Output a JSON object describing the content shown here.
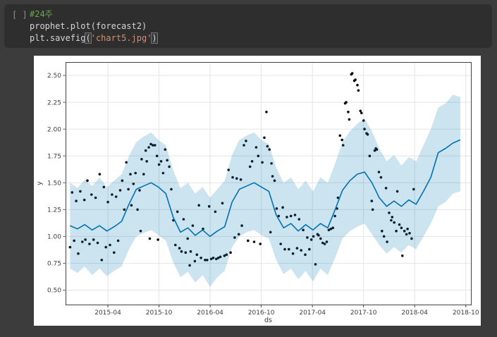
{
  "notebook": {
    "cell": {
      "run_indicator": "[ ]",
      "lines": [
        {
          "parts": [
            {
              "t": "#24주",
              "c": "comment"
            }
          ]
        },
        {
          "parts": [
            {
              "t": "prophet.plot(forecast2)",
              "c": "plain"
            }
          ]
        },
        {
          "parts": [
            {
              "t": "plt.savefig",
              "c": "plain"
            },
            {
              "t": "(",
              "c": "bracket"
            },
            {
              "t": "'chart5.jpg'",
              "c": "string"
            },
            {
              "t": ")",
              "c": "bracket"
            }
          ]
        }
      ]
    },
    "colors": {
      "page_bg": "#3c3c3c",
      "cell_bg": "#2e2e2e",
      "comment": "#69a84f",
      "string": "#ce9178",
      "plain": "#d6d6d6"
    }
  },
  "chart_data": {
    "type": "line",
    "description": "Prophet forecast plot: black observed points, blue yhat line, light-blue uncertainty band",
    "xlabel": "ds",
    "ylabel": "y",
    "xlim": [
      2014.836,
      2018.8
    ],
    "ylim": [
      0.365,
      2.625
    ],
    "grid": true,
    "colors": {
      "line": "#0072B2",
      "band": "#0072B2",
      "band_alpha": 0.2,
      "dots": "#0a0a0a",
      "gridline": "#e4e4e4",
      "spine": "#424242",
      "text": "#3d3d3d"
    },
    "xticks": [
      {
        "label": "2015-04",
        "value": 2015.25
      },
      {
        "label": "2015-10",
        "value": 2015.75
      },
      {
        "label": "2016-04",
        "value": 2016.25
      },
      {
        "label": "2016-10",
        "value": 2016.75
      },
      {
        "label": "2017-04",
        "value": 2017.25
      },
      {
        "label": "2017-10",
        "value": 2017.75
      },
      {
        "label": "2018-04",
        "value": 2018.25
      },
      {
        "label": "2018-10",
        "value": 2018.75
      }
    ],
    "yticks": [
      {
        "label": "0.50",
        "value": 0.5
      },
      {
        "label": "0.75",
        "value": 0.75
      },
      {
        "label": "1.00",
        "value": 1.0
      },
      {
        "label": "1.25",
        "value": 1.25
      },
      {
        "label": "1.50",
        "value": 1.5
      },
      {
        "label": "1.75",
        "value": 1.75
      },
      {
        "label": "2.00",
        "value": 2.0
      },
      {
        "label": "2.25",
        "value": 2.25
      },
      {
        "label": "2.50",
        "value": 2.5
      }
    ],
    "forecast": [
      [
        2014.88,
        1.1,
        0.7,
        1.5
      ],
      [
        2014.952,
        1.07,
        0.66,
        1.45
      ],
      [
        2015.024,
        1.11,
        0.72,
        1.53
      ],
      [
        2015.096,
        1.06,
        0.64,
        1.47
      ],
      [
        2015.168,
        1.1,
        0.7,
        1.55
      ],
      [
        2015.24,
        1.05,
        0.63,
        1.46
      ],
      [
        2015.312,
        1.09,
        0.68,
        1.52
      ],
      [
        2015.384,
        1.14,
        0.72,
        1.58
      ],
      [
        2015.456,
        1.3,
        0.88,
        1.75
      ],
      [
        2015.528,
        1.44,
        1.0,
        1.88
      ],
      [
        2015.6,
        1.47,
        1.03,
        1.93
      ],
      [
        2015.672,
        1.5,
        1.06,
        1.97
      ],
      [
        2015.744,
        1.46,
        1.01,
        1.9
      ],
      [
        2015.816,
        1.4,
        0.96,
        1.85
      ],
      [
        2015.888,
        1.18,
        0.76,
        1.62
      ],
      [
        2015.96,
        1.04,
        0.62,
        1.45
      ],
      [
        2016.032,
        1.08,
        0.67,
        1.5
      ],
      [
        2016.104,
        1.01,
        0.57,
        1.4
      ],
      [
        2016.176,
        1.06,
        0.64,
        1.46
      ],
      [
        2016.248,
        1.0,
        0.53,
        1.36
      ],
      [
        2016.32,
        1.05,
        0.62,
        1.44
      ],
      [
        2016.392,
        1.09,
        0.68,
        1.52
      ],
      [
        2016.464,
        1.32,
        0.9,
        1.76
      ],
      [
        2016.536,
        1.44,
        1.0,
        1.9
      ],
      [
        2016.608,
        1.47,
        1.04,
        1.94
      ],
      [
        2016.68,
        1.5,
        1.06,
        1.97
      ],
      [
        2016.752,
        1.46,
        1.01,
        1.9
      ],
      [
        2016.824,
        1.42,
        0.98,
        1.86
      ],
      [
        2016.896,
        1.2,
        0.78,
        1.64
      ],
      [
        2016.968,
        1.08,
        0.65,
        1.5
      ],
      [
        2017.04,
        1.12,
        0.7,
        1.55
      ],
      [
        2017.112,
        1.05,
        0.6,
        1.44
      ],
      [
        2017.184,
        1.11,
        0.68,
        1.52
      ],
      [
        2017.256,
        1.06,
        0.58,
        1.42
      ],
      [
        2017.328,
        1.12,
        0.7,
        1.55
      ],
      [
        2017.4,
        1.08,
        0.64,
        1.5
      ],
      [
        2017.472,
        1.25,
        0.8,
        1.68
      ],
      [
        2017.544,
        1.43,
        0.98,
        1.88
      ],
      [
        2017.616,
        1.52,
        1.05,
        1.98
      ],
      [
        2017.688,
        1.58,
        1.09,
        2.05
      ],
      [
        2017.76,
        1.6,
        1.12,
        2.1
      ],
      [
        2017.832,
        1.5,
        1.02,
        1.98
      ],
      [
        2017.904,
        1.36,
        0.92,
        1.82
      ],
      [
        2017.976,
        1.28,
        0.84,
        1.7
      ],
      [
        2018.048,
        1.33,
        0.9,
        1.76
      ],
      [
        2018.12,
        1.28,
        0.85,
        1.66
      ],
      [
        2018.192,
        1.34,
        0.92,
        1.74
      ],
      [
        2018.264,
        1.3,
        0.88,
        1.7
      ],
      [
        2018.336,
        1.42,
        1.0,
        1.85
      ],
      [
        2018.408,
        1.55,
        1.12,
        2.0
      ],
      [
        2018.48,
        1.78,
        1.28,
        2.2
      ],
      [
        2018.552,
        1.82,
        1.32,
        2.24
      ],
      [
        2018.624,
        1.87,
        1.4,
        2.32
      ],
      [
        2018.696,
        1.9,
        1.42,
        2.3
      ]
    ],
    "scatter": [
      [
        2014.88,
        0.9
      ],
      [
        2014.9,
        1.41
      ],
      [
        2014.92,
        0.96
      ],
      [
        2014.94,
        1.33
      ],
      [
        2014.96,
        0.84
      ],
      [
        2014.98,
        1.42
      ],
      [
        2015.0,
        0.95
      ],
      [
        2015.02,
        1.34
      ],
      [
        2015.03,
        0.97
      ],
      [
        2015.05,
        1.52
      ],
      [
        2015.07,
        0.93
      ],
      [
        2015.09,
        1.39
      ],
      [
        2015.11,
        0.97
      ],
      [
        2015.13,
        1.36
      ],
      [
        2015.15,
        0.94
      ],
      [
        2015.17,
        1.58
      ],
      [
        2015.19,
        0.78
      ],
      [
        2015.21,
        1.46
      ],
      [
        2015.23,
        0.9
      ],
      [
        2015.25,
        1.32
      ],
      [
        2015.27,
        0.92
      ],
      [
        2015.29,
        1.39
      ],
      [
        2015.31,
        0.85
      ],
      [
        2015.33,
        1.37
      ],
      [
        2015.35,
        0.96
      ],
      [
        2015.37,
        1.43
      ],
      [
        2015.39,
        1.52
      ],
      [
        2015.41,
        1.25
      ],
      [
        2015.43,
        1.69
      ],
      [
        2015.45,
        1.44
      ],
      [
        2015.47,
        1.58
      ],
      [
        2015.48,
        1.29
      ],
      [
        2015.5,
        1.49
      ],
      [
        2015.52,
        1.59
      ],
      [
        2015.54,
        1.25
      ],
      [
        2015.56,
        1.43
      ],
      [
        2015.57,
        1.05
      ],
      [
        2015.58,
        1.72
      ],
      [
        2015.6,
        1.58
      ],
      [
        2015.62,
        1.8
      ],
      [
        2015.63,
        1.7
      ],
      [
        2015.65,
        1.83
      ],
      [
        2015.66,
        0.98
      ],
      [
        2015.67,
        1.86
      ],
      [
        2015.69,
        1.85
      ],
      [
        2015.71,
        1.85
      ],
      [
        2015.73,
        1.75
      ],
      [
        2015.74,
        0.97
      ],
      [
        2015.75,
        1.67
      ],
      [
        2015.77,
        1.7
      ],
      [
        2015.79,
        1.59
      ],
      [
        2015.81,
        1.81
      ],
      [
        2015.83,
        1.71
      ],
      [
        2015.85,
        1.65
      ],
      [
        2015.87,
        1.44
      ],
      [
        2015.89,
        1.15
      ],
      [
        2015.91,
        0.92
      ],
      [
        2015.93,
        1.23
      ],
      [
        2015.95,
        0.89
      ],
      [
        2015.97,
        0.86
      ],
      [
        2015.99,
        1.16
      ],
      [
        2016.01,
        0.85
      ],
      [
        2016.03,
        0.98
      ],
      [
        2016.05,
        0.73
      ],
      [
        2016.06,
        0.86
      ],
      [
        2016.08,
        1.1
      ],
      [
        2016.1,
        0.77
      ],
      [
        2016.12,
        0.83
      ],
      [
        2016.14,
        1.29
      ],
      [
        2016.16,
        0.8
      ],
      [
        2016.18,
        1.07
      ],
      [
        2016.2,
        0.78
      ],
      [
        2016.22,
        0.78
      ],
      [
        2016.24,
        1.28
      ],
      [
        2016.26,
        0.79
      ],
      [
        2016.28,
        0.8
      ],
      [
        2016.3,
        1.23
      ],
      [
        2016.31,
        0.79
      ],
      [
        2016.33,
        0.8
      ],
      [
        2016.35,
        0.81
      ],
      [
        2016.37,
        1.31
      ],
      [
        2016.39,
        0.82
      ],
      [
        2016.41,
        0.83
      ],
      [
        2016.43,
        1.62
      ],
      [
        2016.45,
        0.85
      ],
      [
        2016.47,
        1.55
      ],
      [
        2016.49,
        0.99
      ],
      [
        2016.51,
        1.54
      ],
      [
        2016.53,
        1.02
      ],
      [
        2016.55,
        1.53
      ],
      [
        2016.56,
        1.1
      ],
      [
        2016.58,
        1.85
      ],
      [
        2016.6,
        1.89
      ],
      [
        2016.62,
        0.96
      ],
      [
        2016.64,
        1.65
      ],
      [
        2016.66,
        1.7
      ],
      [
        2016.68,
        0.95
      ],
      [
        2016.7,
        1.83
      ],
      [
        2016.72,
        1.75
      ],
      [
        2016.74,
        0.93
      ],
      [
        2016.76,
        1.69
      ],
      [
        2016.78,
        1.92
      ],
      [
        2016.8,
        2.16
      ],
      [
        2016.81,
        1.84
      ],
      [
        2016.83,
        1.81
      ],
      [
        2016.84,
        1.04
      ],
      [
        2016.85,
        1.68
      ],
      [
        2016.86,
        1.56
      ],
      [
        2016.88,
        1.52
      ],
      [
        2016.9,
        1.26
      ],
      [
        2016.92,
        1.19
      ],
      [
        2016.94,
        0.93
      ],
      [
        2016.96,
        1.27
      ],
      [
        2016.98,
        0.88
      ],
      [
        2017.0,
        1.18
      ],
      [
        2017.02,
        0.88
      ],
      [
        2017.04,
        1.19
      ],
      [
        2017.06,
        0.84
      ],
      [
        2017.08,
        1.2
      ],
      [
        2017.1,
        0.89
      ],
      [
        2017.12,
        1.16
      ],
      [
        2017.14,
        0.87
      ],
      [
        2017.16,
        1.06
      ],
      [
        2017.18,
        0.83
      ],
      [
        2017.2,
        0.99
      ],
      [
        2017.22,
        0.88
      ],
      [
        2017.24,
        0.97
      ],
      [
        2017.26,
        1.0
      ],
      [
        2017.28,
        0.74
      ],
      [
        2017.3,
        1.02
      ],
      [
        2017.31,
        1.01
      ],
      [
        2017.33,
        0.98
      ],
      [
        2017.35,
        0.94
      ],
      [
        2017.37,
        0.93
      ],
      [
        2017.39,
        0.95
      ],
      [
        2017.41,
        1.06
      ],
      [
        2017.43,
        1.07
      ],
      [
        2017.45,
        1.08
      ],
      [
        2017.47,
        1.19
      ],
      [
        2017.49,
        1.26
      ],
      [
        2017.5,
        1.36
      ],
      [
        2017.52,
        1.94
      ],
      [
        2017.54,
        1.9
      ],
      [
        2017.55,
        1.85
      ],
      [
        2017.57,
        2.24
      ],
      [
        2017.58,
        2.25
      ],
      [
        2017.6,
        2.16
      ],
      [
        2017.61,
        2.09
      ],
      [
        2017.63,
        2.51
      ],
      [
        2017.64,
        2.52
      ],
      [
        2017.66,
        2.45
      ],
      [
        2017.67,
        2.46
      ],
      [
        2017.69,
        2.41
      ],
      [
        2017.7,
        2.36
      ],
      [
        2017.72,
        2.17
      ],
      [
        2017.73,
        2.15
      ],
      [
        2017.75,
        2.08
      ],
      [
        2017.76,
        2.0
      ],
      [
        2017.78,
        1.96
      ],
      [
        2017.79,
        1.95
      ],
      [
        2017.81,
        1.75
      ],
      [
        2017.83,
        1.33
      ],
      [
        2017.84,
        1.25
      ],
      [
        2017.86,
        1.8
      ],
      [
        2017.87,
        1.82
      ],
      [
        2017.88,
        1.81
      ],
      [
        2017.9,
        1.6
      ],
      [
        2017.92,
        1.55
      ],
      [
        2017.93,
        1.05
      ],
      [
        2017.95,
        1.0
      ],
      [
        2017.97,
        1.45
      ],
      [
        2017.98,
        0.95
      ],
      [
        2018.0,
        1.22
      ],
      [
        2018.02,
        1.15
      ],
      [
        2018.03,
        1.18
      ],
      [
        2018.05,
        1.13
      ],
      [
        2018.07,
        1.05
      ],
      [
        2018.08,
        1.42
      ],
      [
        2018.1,
        1.11
      ],
      [
        2018.12,
        1.08
      ],
      [
        2018.13,
        0.82
      ],
      [
        2018.15,
        1.05
      ],
      [
        2018.17,
        1.02
      ],
      [
        2018.18,
        1.07
      ],
      [
        2018.2,
        1.03
      ],
      [
        2018.22,
        0.98
      ],
      [
        2018.24,
        1.44
      ]
    ]
  }
}
